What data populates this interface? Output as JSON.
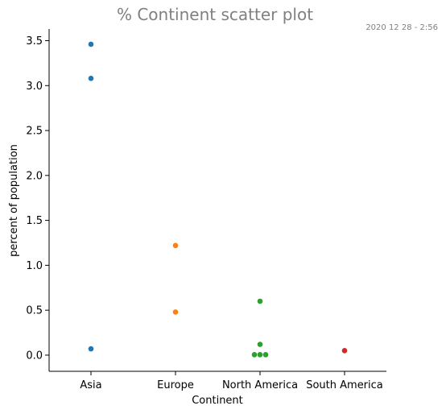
{
  "chart_data": {
    "type": "scatter",
    "title": "% Continent scatter plot",
    "timestamp": "2020 12 28 - 2:56",
    "xlabel": "Continent",
    "ylabel": "percent of population",
    "categories": [
      "Asia",
      "Europe",
      "North America",
      "South America"
    ],
    "ylim": [
      -0.18,
      3.63
    ],
    "yticks": [
      0.0,
      0.5,
      1.0,
      1.5,
      2.0,
      2.5,
      3.0,
      3.5
    ],
    "ytick_labels": [
      "0.0",
      "0.5",
      "1.0",
      "1.5",
      "2.0",
      "2.5",
      "3.0",
      "3.5"
    ],
    "grid": false,
    "legend": "none",
    "series": [
      {
        "category": "Asia",
        "color": "#1f77b4",
        "points": [
          3.46,
          3.08,
          0.07
        ]
      },
      {
        "category": "Europe",
        "color": "#ff7f0e",
        "points": [
          1.22,
          0.48
        ]
      },
      {
        "category": "North America",
        "color": "#2ca02c",
        "points": [
          0.6,
          0.12,
          0.005,
          0.005,
          0.005
        ]
      },
      {
        "category": "South America",
        "color": "#d62728",
        "points": [
          0.05
        ]
      }
    ]
  }
}
